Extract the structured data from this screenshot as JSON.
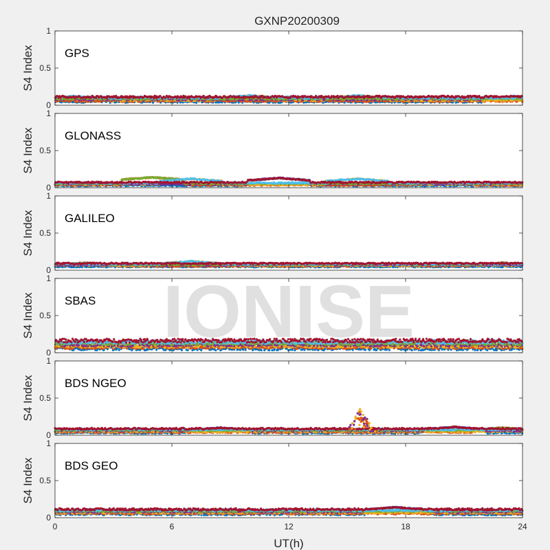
{
  "figure": {
    "title": "GXNP20200309",
    "xlabel": "UT(h)",
    "watermark": "IONISE"
  },
  "chart_data": {
    "type": "scatter",
    "xlim": [
      0,
      24
    ],
    "xticks": [
      0,
      6,
      12,
      18,
      24
    ],
    "xlabel": "UT(h)",
    "ylabel": "S4 Index",
    "ylim": [
      0,
      1
    ],
    "yticks": [
      0,
      0.5,
      1
    ],
    "ytick_labels": [
      "0",
      "0.5",
      "1"
    ],
    "grid": false,
    "colors": [
      "#0072BD",
      "#D95319",
      "#EDB120",
      "#7E2F8E",
      "#77AC30",
      "#4DBEEE",
      "#A2142F"
    ],
    "panels": [
      {
        "name": "GPS",
        "label": "GPS",
        "baseline": 0.08,
        "spread": 0.03,
        "bumps": [
          [
            1.0,
            0.12
          ],
          [
            10.0,
            0.13
          ],
          [
            15.5,
            0.13
          ],
          [
            23.5,
            0.12
          ]
        ],
        "spike": null
      },
      {
        "name": "GLONASS",
        "label": "GLONASS",
        "baseline": 0.05,
        "spread": 0.02,
        "bumps": [
          [
            5.0,
            0.14
          ],
          [
            7.0,
            0.12
          ],
          [
            11.5,
            0.13
          ],
          [
            15.5,
            0.12
          ],
          [
            20.0,
            0.07
          ]
        ],
        "spike": null
      },
      {
        "name": "GALILEO",
        "label": "GALILEO",
        "baseline": 0.07,
        "spread": 0.02,
        "bumps": [
          [
            1.5,
            0.1
          ],
          [
            7.0,
            0.12
          ],
          [
            17.0,
            0.09
          ],
          [
            23.0,
            0.1
          ]
        ],
        "spike": null
      },
      {
        "name": "SBAS",
        "label": "SBAS",
        "baseline": 0.11,
        "spread": 0.05,
        "bumps": [],
        "spike": null
      },
      {
        "name": "BDS NGEO",
        "label": "BDS NGEO",
        "baseline": 0.06,
        "spread": 0.025,
        "bumps": [
          [
            8.5,
            0.1
          ],
          [
            20.5,
            0.11
          ],
          [
            23.0,
            0.1
          ]
        ],
        "spike": {
          "x": 15.7,
          "peak": 0.38
        }
      },
      {
        "name": "BDS GEO",
        "label": "BDS GEO",
        "baseline": 0.08,
        "spread": 0.03,
        "bumps": [
          [
            17.5,
            0.14
          ]
        ],
        "spike": null
      }
    ]
  }
}
